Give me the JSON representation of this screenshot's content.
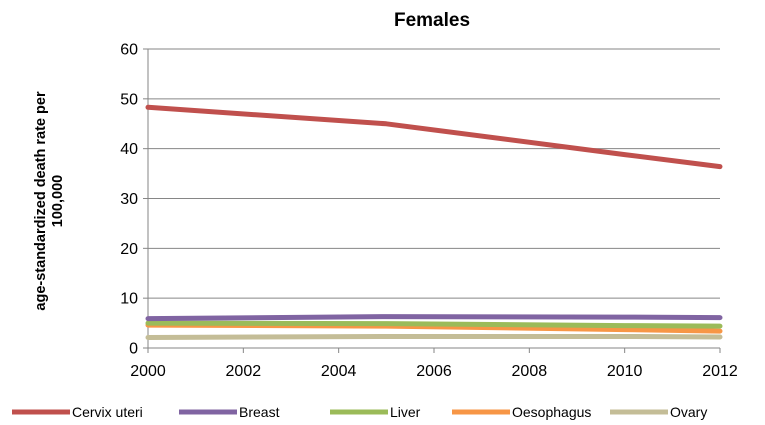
{
  "chart_data": {
    "type": "line",
    "title": "Females",
    "ylabel_lines": [
      "age-standardized death rate per",
      "100,000"
    ],
    "xlabel": "",
    "x": [
      2000,
      2005,
      2010,
      2012
    ],
    "xticks": [
      "2000",
      "2002",
      "2004",
      "2006",
      "2008",
      "2010",
      "2012"
    ],
    "xlim": [
      2000,
      2012
    ],
    "yticks": [
      "0",
      "10",
      "20",
      "30",
      "40",
      "50",
      "60"
    ],
    "ylim": [
      0,
      60
    ],
    "grid": "horizontal",
    "legend_position": "bottom",
    "series": [
      {
        "name": "Cervix uteri",
        "color": "#c0504d",
        "values": [
          48.3,
          45.0,
          38.8,
          36.4
        ]
      },
      {
        "name": "Breast",
        "color": "#8064a2",
        "values": [
          5.9,
          6.3,
          6.2,
          6.1
        ]
      },
      {
        "name": "Liver",
        "color": "#9bbb59",
        "values": [
          5.0,
          4.9,
          4.5,
          4.4
        ]
      },
      {
        "name": "Oesophagus",
        "color": "#f79646",
        "values": [
          4.6,
          4.4,
          3.7,
          3.4
        ]
      },
      {
        "name": "Ovary",
        "color": "#c4bd97",
        "values": [
          2.1,
          2.3,
          2.3,
          2.2
        ]
      }
    ]
  }
}
